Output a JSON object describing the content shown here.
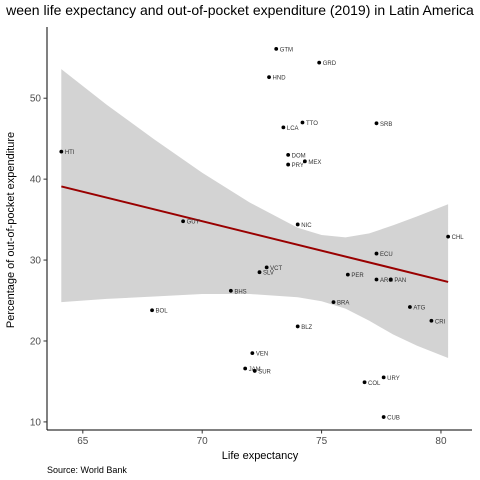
{
  "chart_data": {
    "type": "scatter",
    "title": "ween life expectancy and out-of-pocket expenditure (2019) in Latin America",
    "xlabel": "Life expectancy",
    "ylabel": "Percentage of out-of-pocket expenditure",
    "caption": "Source: World Bank",
    "xlim": [
      63.5,
      81.3
    ],
    "ylim": [
      9.0,
      58.8
    ],
    "x_ticks": [
      65,
      70,
      75,
      80
    ],
    "y_ticks": [
      10,
      20,
      30,
      40,
      50
    ],
    "grid": false,
    "points": [
      {
        "label": "GTM",
        "x": 73.1,
        "y": 56.1
      },
      {
        "label": "GRD",
        "x": 74.9,
        "y": 54.4
      },
      {
        "label": "HND",
        "x": 72.8,
        "y": 52.6
      },
      {
        "label": "TTO",
        "x": 74.2,
        "y": 47.0
      },
      {
        "label": "SRB",
        "x": 77.3,
        "y": 46.9
      },
      {
        "label": "LCA",
        "x": 73.4,
        "y": 46.4
      },
      {
        "label": "HTI",
        "x": 64.1,
        "y": 43.4
      },
      {
        "label": "DOM",
        "x": 73.6,
        "y": 43.0
      },
      {
        "label": "MEX",
        "x": 74.3,
        "y": 42.2
      },
      {
        "label": "PRY",
        "x": 73.6,
        "y": 41.8
      },
      {
        "label": "GUY",
        "x": 69.2,
        "y": 34.8
      },
      {
        "label": "NIC",
        "x": 74.0,
        "y": 34.4
      },
      {
        "label": "CHL",
        "x": 80.3,
        "y": 32.9
      },
      {
        "label": "ECU",
        "x": 77.3,
        "y": 30.8
      },
      {
        "label": "VCT",
        "x": 72.7,
        "y": 29.1
      },
      {
        "label": "SLV",
        "x": 72.4,
        "y": 28.5
      },
      {
        "label": "PER",
        "x": 76.1,
        "y": 28.2
      },
      {
        "label": "ARG",
        "x": 77.3,
        "y": 27.6
      },
      {
        "label": "PAN",
        "x": 77.9,
        "y": 27.6
      },
      {
        "label": "BHS",
        "x": 71.2,
        "y": 26.2
      },
      {
        "label": "BRA",
        "x": 75.5,
        "y": 24.8
      },
      {
        "label": "ATG",
        "x": 78.7,
        "y": 24.2
      },
      {
        "label": "BOL",
        "x": 67.9,
        "y": 23.8
      },
      {
        "label": "CRI",
        "x": 79.6,
        "y": 22.5
      },
      {
        "label": "BLZ",
        "x": 74.0,
        "y": 21.8
      },
      {
        "label": "VEN",
        "x": 72.1,
        "y": 18.5
      },
      {
        "label": "JAM",
        "x": 71.8,
        "y": 16.6
      },
      {
        "label": "SUR",
        "x": 72.2,
        "y": 16.3
      },
      {
        "label": "URY",
        "x": 77.6,
        "y": 15.5
      },
      {
        "label": "COL",
        "x": 76.8,
        "y": 14.9
      },
      {
        "label": "CUB",
        "x": 77.6,
        "y": 10.6
      }
    ],
    "trend_line": {
      "x": [
        64.1,
        80.3
      ],
      "y": [
        39.1,
        27.3
      ],
      "color": "#990000"
    },
    "confidence_band": {
      "color": "#d3d3d3",
      "x": [
        64.1,
        66.0,
        68.0,
        70.0,
        72.0,
        74.0,
        75.0,
        76.0,
        77.0,
        78.0,
        79.0,
        80.3
      ],
      "upper": [
        53.6,
        49.2,
        44.9,
        40.8,
        37.1,
        34.0,
        33.1,
        32.8,
        33.3,
        34.3,
        35.4,
        36.9
      ],
      "lower": [
        24.8,
        25.2,
        25.5,
        25.8,
        25.8,
        25.4,
        24.9,
        24.0,
        22.5,
        20.8,
        19.4,
        17.9
      ]
    },
    "colors": {
      "point": "#000000",
      "label": "#333333"
    }
  }
}
